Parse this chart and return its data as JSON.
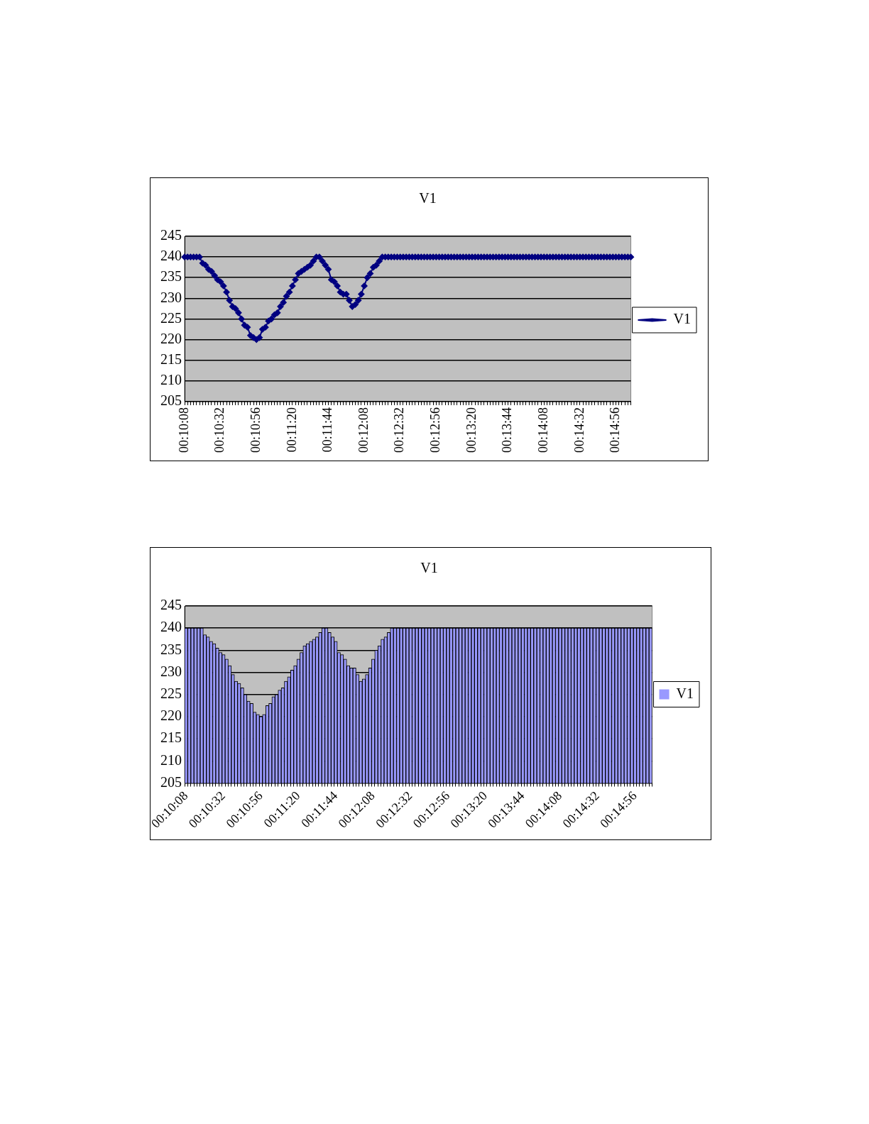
{
  "chart_data": [
    {
      "type": "line",
      "title": "V1",
      "series": [
        {
          "name": "V1",
          "color": "#000080",
          "values": [
            240,
            240,
            240,
            240,
            240,
            240,
            238.5,
            238,
            237,
            236.5,
            235.5,
            234.5,
            234,
            233,
            231.5,
            229.5,
            228,
            227.5,
            226.5,
            225,
            223.5,
            223,
            221,
            220.5,
            220,
            220.5,
            222.5,
            223,
            224.5,
            225,
            226,
            226.5,
            228,
            229,
            230.5,
            231.5,
            233,
            234.5,
            236,
            236.5,
            237,
            237.5,
            238,
            239,
            240,
            240,
            239,
            238,
            237,
            234.5,
            234,
            233,
            231.5,
            231,
            231,
            229.5,
            228,
            228.5,
            229.5,
            231,
            233,
            235,
            236,
            237.5,
            238,
            239,
            240,
            240,
            240,
            240,
            240,
            240,
            240,
            240,
            240,
            240,
            240,
            240,
            240,
            240,
            240,
            240,
            240,
            240,
            240,
            240,
            240,
            240,
            240,
            240,
            240,
            240,
            240,
            240,
            240,
            240,
            240,
            240,
            240,
            240,
            240,
            240,
            240,
            240,
            240,
            240,
            240,
            240,
            240,
            240,
            240,
            240,
            240,
            240,
            240,
            240,
            240,
            240,
            240,
            240,
            240,
            240,
            240,
            240,
            240,
            240,
            240,
            240,
            240,
            240,
            240,
            240,
            240,
            240,
            240,
            240,
            240,
            240,
            240,
            240,
            240,
            240,
            240,
            240,
            240,
            240,
            240,
            240,
            240,
            240
          ]
        }
      ],
      "categories": [
        "00:10:08",
        null,
        null,
        null,
        null,
        null,
        null,
        null,
        null,
        null,
        null,
        null,
        "00:10:32",
        null,
        null,
        null,
        null,
        null,
        null,
        null,
        null,
        null,
        null,
        null,
        "00:10:56",
        null,
        null,
        null,
        null,
        null,
        null,
        null,
        null,
        null,
        null,
        null,
        "00:11:20",
        null,
        null,
        null,
        null,
        null,
        null,
        null,
        null,
        null,
        null,
        null,
        "00:11:44",
        null,
        null,
        null,
        null,
        null,
        null,
        null,
        null,
        null,
        null,
        null,
        "00:12:08",
        null,
        null,
        null,
        null,
        null,
        null,
        null,
        null,
        null,
        null,
        null,
        "00:12:32",
        null,
        null,
        null,
        null,
        null,
        null,
        null,
        null,
        null,
        null,
        null,
        "00:12:56",
        null,
        null,
        null,
        null,
        null,
        null,
        null,
        null,
        null,
        null,
        null,
        "00:13:20",
        null,
        null,
        null,
        null,
        null,
        null,
        null,
        null,
        null,
        null,
        null,
        "00:13:44",
        null,
        null,
        null,
        null,
        null,
        null,
        null,
        null,
        null,
        null,
        null,
        "00:14:08",
        null,
        null,
        null,
        null,
        null,
        null,
        null,
        null,
        null,
        null,
        null,
        "00:14:32",
        null,
        null,
        null,
        null,
        null,
        null,
        null,
        null,
        null,
        null,
        null,
        "00:14:56",
        null,
        null,
        null,
        null,
        null
      ],
      "ylim": [
        205,
        245
      ],
      "yticks": [
        205,
        210,
        215,
        220,
        225,
        230,
        235,
        240,
        245
      ],
      "grid": "y",
      "legend": "right",
      "marker": "diamond",
      "line_style": "solid"
    },
    {
      "type": "bar",
      "title": "V1",
      "series": [
        {
          "name": "V1",
          "color": "#9999ff",
          "values": [
            240,
            240,
            240,
            240,
            240,
            240,
            238.5,
            238,
            237,
            236.5,
            235.5,
            234.5,
            234,
            233,
            231.5,
            229.5,
            228,
            227.5,
            226.5,
            225,
            223.5,
            223,
            221,
            220.5,
            220,
            220.5,
            222.5,
            223,
            224.5,
            225,
            226,
            226.5,
            228,
            229,
            230.5,
            231.5,
            233,
            234.5,
            236,
            236.5,
            237,
            237.5,
            238,
            239,
            240,
            240,
            239,
            238,
            237,
            234.5,
            234,
            233,
            231.5,
            231,
            231,
            229.5,
            228,
            228.5,
            229.5,
            231,
            233,
            235,
            236,
            237.5,
            238,
            239,
            240,
            240,
            240,
            240,
            240,
            240,
            240,
            240,
            240,
            240,
            240,
            240,
            240,
            240,
            240,
            240,
            240,
            240,
            240,
            240,
            240,
            240,
            240,
            240,
            240,
            240,
            240,
            240,
            240,
            240,
            240,
            240,
            240,
            240,
            240,
            240,
            240,
            240,
            240,
            240,
            240,
            240,
            240,
            240,
            240,
            240,
            240,
            240,
            240,
            240,
            240,
            240,
            240,
            240,
            240,
            240,
            240,
            240,
            240,
            240,
            240,
            240,
            240,
            240,
            240,
            240,
            240,
            240,
            240,
            240,
            240,
            240,
            240,
            240,
            240,
            240,
            240,
            240,
            240,
            240,
            240,
            240,
            240,
            240
          ]
        }
      ],
      "categories": [
        "00:10:08",
        null,
        null,
        null,
        null,
        null,
        null,
        null,
        null,
        null,
        null,
        null,
        "00:10:32",
        null,
        null,
        null,
        null,
        null,
        null,
        null,
        null,
        null,
        null,
        null,
        "00:10:56",
        null,
        null,
        null,
        null,
        null,
        null,
        null,
        null,
        null,
        null,
        null,
        "00:11:20",
        null,
        null,
        null,
        null,
        null,
        null,
        null,
        null,
        null,
        null,
        null,
        "00:11:44",
        null,
        null,
        null,
        null,
        null,
        null,
        null,
        null,
        null,
        null,
        null,
        "00:12:08",
        null,
        null,
        null,
        null,
        null,
        null,
        null,
        null,
        null,
        null,
        null,
        "00:12:32",
        null,
        null,
        null,
        null,
        null,
        null,
        null,
        null,
        null,
        null,
        null,
        "00:12:56",
        null,
        null,
        null,
        null,
        null,
        null,
        null,
        null,
        null,
        null,
        null,
        "00:13:20",
        null,
        null,
        null,
        null,
        null,
        null,
        null,
        null,
        null,
        null,
        null,
        "00:13:44",
        null,
        null,
        null,
        null,
        null,
        null,
        null,
        null,
        null,
        null,
        null,
        "00:14:08",
        null,
        null,
        null,
        null,
        null,
        null,
        null,
        null,
        null,
        null,
        null,
        "00:14:32",
        null,
        null,
        null,
        null,
        null,
        null,
        null,
        null,
        null,
        null,
        null,
        "00:14:56",
        null,
        null,
        null,
        null,
        null
      ],
      "ylim": [
        205,
        245
      ],
      "yticks": [
        205,
        210,
        215,
        220,
        225,
        230,
        235,
        240,
        245
      ],
      "grid": "y",
      "legend": "right"
    }
  ]
}
